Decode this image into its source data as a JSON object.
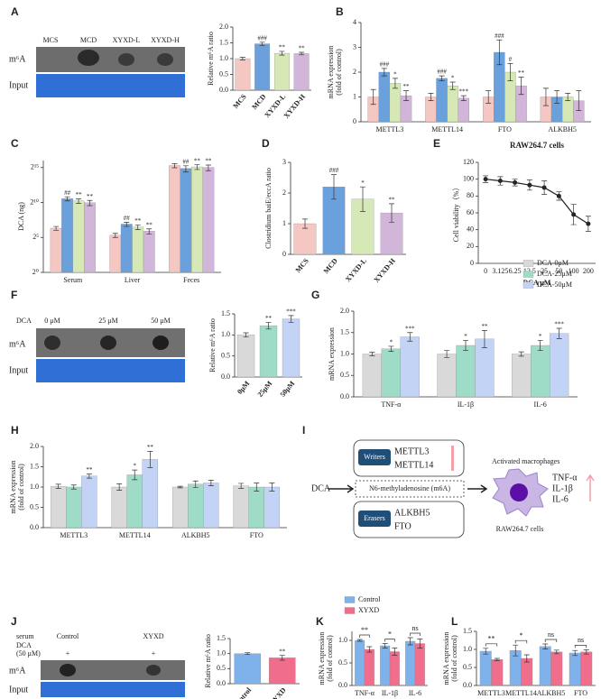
{
  "panel_letters": [
    "A",
    "B",
    "C",
    "D",
    "E",
    "F",
    "G",
    "H",
    "I",
    "J",
    "K",
    "L"
  ],
  "blots": [
    {
      "lanes": [
        "MCS",
        "MCD",
        "XYXD-L",
        "XYXD-H"
      ],
      "rows": [
        "m⁶A",
        "Input"
      ]
    },
    {
      "treatment": "DCA",
      "lanes": [
        "0 μM",
        "25 μM",
        "50 μM"
      ],
      "rows": [
        "m⁶A",
        "Input"
      ]
    },
    {
      "group_label": "serum",
      "lanes": [
        "Control",
        "XYXD"
      ],
      "treatment": "DCA",
      "dose": "(50 μM)",
      "doses": [
        "+",
        "+"
      ],
      "rows": [
        "m⁶A",
        "Input"
      ]
    }
  ],
  "diagram": {
    "writers_title": "Writers",
    "writers": [
      "METTL3",
      "METTL14"
    ],
    "input": "DCA",
    "modification": "N6-methyladenosine (m6A)",
    "erasers_title": "Erasers",
    "erasers": [
      "ALKBH5",
      "FTO"
    ],
    "output_title": "Activated macrophages",
    "cytokines": [
      "TNF-α",
      "IL-1β",
      "IL-6"
    ],
    "cell_label": "RAW264.7 cells"
  },
  "chart_data": [
    {
      "type": "bar",
      "ylabel": [
        "Relative m⁶A ratio"
      ],
      "categories": [
        "MCS",
        "MCD",
        "XYXD-L",
        "XYXD-H"
      ],
      "series": [
        {
          "colors": [
            "#f4c7c3",
            "#6aa1dc",
            "#d5e8b5",
            "#d2b6da"
          ],
          "values": [
            1.0,
            1.47,
            1.17,
            1.16
          ],
          "errors": [
            0.04,
            0.05,
            0.06,
            0.04
          ],
          "marks": [
            null,
            "###",
            "**",
            "**"
          ]
        }
      ],
      "ylim": [
        0,
        2
      ],
      "yticks": [
        {
          "value": 0,
          "label": "0.0"
        },
        {
          "value": 0.5,
          "label": "0.5"
        },
        {
          "value": 1,
          "label": "1.0"
        },
        {
          "value": 1.5,
          "label": "1.5"
        },
        {
          "value": 2,
          "label": "2.0"
        }
      ]
    },
    {
      "type": "bar",
      "ylabel": [
        "mRNA expression",
        "(fold of control)"
      ],
      "categories": [
        "METTL3",
        "METTL14",
        "FTO",
        "ALKBH5"
      ],
      "series": [
        {
          "color": "#f4c7c3",
          "values": [
            1.0,
            1.0,
            1.0,
            1.0
          ],
          "errors": [
            0.3,
            0.15,
            0.25,
            0.35
          ]
        },
        {
          "color": "#6aa1dc",
          "values": [
            2.0,
            1.75,
            2.8,
            1.0
          ],
          "errors": [
            0.15,
            0.1,
            0.5,
            0.25
          ],
          "marks": [
            "###",
            "###",
            "###",
            null
          ]
        },
        {
          "color": "#d5e8b5",
          "values": [
            1.55,
            1.45,
            2.0,
            1.0
          ],
          "errors": [
            0.2,
            0.15,
            0.35,
            0.15
          ],
          "marks": [
            "*",
            "*",
            "#",
            null
          ]
        },
        {
          "color": "#d2b6da",
          "values": [
            1.05,
            0.95,
            1.45,
            0.85
          ],
          "errors": [
            0.2,
            0.1,
            0.35,
            0.4
          ],
          "marks": [
            "**",
            "***",
            "**",
            null
          ]
        }
      ],
      "ylim": [
        0,
        4
      ],
      "yticks": [
        0,
        1,
        2,
        3,
        4
      ]
    },
    {
      "type": "bar",
      "log_base": 2,
      "ylabel": [
        "DCA (ng)"
      ],
      "categories": [
        "Serum",
        "Liver",
        "Feces"
      ],
      "series": [
        {
          "color": "#f4c7c3",
          "values": [
            80,
            40,
            40000
          ],
          "errors": [
            15,
            8,
            8000
          ]
        },
        {
          "color": "#6aa1dc",
          "values": [
            1500,
            120,
            30000
          ],
          "errors": [
            300,
            25,
            9000
          ],
          "marks": [
            "##",
            "##",
            "##"
          ]
        },
        {
          "color": "#d5e8b5",
          "values": [
            1200,
            90,
            35000
          ],
          "errors": [
            250,
            20,
            8000
          ],
          "marks": [
            "**",
            "**",
            "**"
          ]
        },
        {
          "color": "#d2b6da",
          "values": [
            1000,
            60,
            33000
          ],
          "errors": [
            250,
            15,
            9000
          ],
          "marks": [
            "**",
            "**",
            "**"
          ]
        }
      ],
      "ylim": [
        1,
        65536
      ],
      "yticks": [
        {
          "value": 1,
          "label": "2⁰"
        },
        {
          "value": 32,
          "label": "2⁵"
        },
        {
          "value": 1024,
          "label": "2¹⁰"
        },
        {
          "value": 32768,
          "label": "2¹⁵"
        }
      ]
    },
    {
      "type": "bar",
      "ylabel": [
        "Clostridium baiE/eccA ratio"
      ],
      "categories": [
        "MCS",
        "MCD",
        "XYXD-L",
        "XYXD-H"
      ],
      "series": [
        {
          "colors": [
            "#f4c7c3",
            "#6aa1dc",
            "#d5e8b5",
            "#d2b6da"
          ],
          "values": [
            1.0,
            2.2,
            1.8,
            1.35
          ],
          "errors": [
            0.15,
            0.4,
            0.4,
            0.3
          ],
          "marks": [
            null,
            "###",
            "*",
            "**"
          ]
        }
      ],
      "ylim": [
        0,
        3
      ],
      "yticks": [
        0,
        1,
        2,
        3
      ]
    },
    {
      "type": "line",
      "title": "RAW264.7 cells",
      "ylabel": [
        "Cell viability（%）"
      ],
      "xlabel": "DCA μM",
      "categories": [
        "0",
        "3.125",
        "6.25",
        "12.5",
        "25",
        "50",
        "100",
        "200"
      ],
      "series": [
        {
          "color": "#222222",
          "values": [
            100,
            98,
            96,
            93,
            90,
            80,
            58,
            47
          ],
          "errors": [
            4,
            5,
            4,
            6,
            8,
            5,
            12,
            9
          ]
        }
      ],
      "ylim": [
        0,
        120
      ],
      "yticks": [
        0,
        20,
        40,
        60,
        80,
        100,
        120
      ]
    },
    {
      "type": "bar",
      "ylabel": [
        "Relative m⁶A ratio"
      ],
      "categories": [
        "0μM",
        "25μM",
        "50μM"
      ],
      "series": [
        {
          "colors": [
            "#d9d9d9",
            "#9fdcc8",
            "#c3d3f5"
          ],
          "values": [
            1.0,
            1.22,
            1.38
          ],
          "errors": [
            0.05,
            0.08,
            0.08
          ],
          "marks": [
            null,
            "**",
            "***"
          ]
        }
      ],
      "ylim": [
        0,
        1.5
      ],
      "yticks": [
        {
          "value": 0,
          "label": "0.0"
        },
        {
          "value": 0.5,
          "label": "0.5"
        },
        {
          "value": 1,
          "label": "1.0"
        },
        {
          "value": 1.5,
          "label": "1.5"
        }
      ]
    },
    {
      "type": "bar",
      "ylabel": [
        "mRNA expression"
      ],
      "categories": [
        "TNF-α",
        "IL-1β",
        "IL-6"
      ],
      "series": [
        {
          "name": "DCA-0μM",
          "color": "#d9d9d9",
          "values": [
            1.0,
            1.0,
            1.0
          ],
          "errors": [
            0.04,
            0.08,
            0.05
          ]
        },
        {
          "name": "DCA-25μM",
          "color": "#9fdcc8",
          "values": [
            1.12,
            1.2,
            1.2
          ],
          "errors": [
            0.06,
            0.12,
            0.12
          ],
          "marks": [
            "*",
            "*",
            "*"
          ]
        },
        {
          "name": "DCA-50μM",
          "color": "#c3d3f5",
          "values": [
            1.4,
            1.35,
            1.48
          ],
          "errors": [
            0.1,
            0.2,
            0.12
          ],
          "marks": [
            "***",
            "**",
            "***"
          ]
        }
      ],
      "ylim": [
        0,
        2
      ],
      "yticks": [
        {
          "value": 0,
          "label": "0.0"
        },
        {
          "value": 0.5,
          "label": "0.5"
        },
        {
          "value": 1,
          "label": "1.0"
        },
        {
          "value": 1.5,
          "label": "1.5"
        },
        {
          "value": 2,
          "label": "2.0"
        }
      ]
    },
    {
      "type": "bar",
      "ylabel": [
        "mRNA expression",
        "(fold of control)"
      ],
      "categories": [
        "METTL3",
        "METTL14",
        "ALKBH5",
        "FTO"
      ],
      "series": [
        {
          "color": "#d9d9d9",
          "values": [
            1.02,
            1.0,
            1.0,
            1.03
          ],
          "errors": [
            0.05,
            0.08,
            0.02,
            0.06
          ]
        },
        {
          "color": "#9fdcc8",
          "values": [
            1.0,
            1.3,
            1.07,
            1.0
          ],
          "errors": [
            0.05,
            0.12,
            0.08,
            0.1
          ],
          "marks": [
            null,
            "*",
            null,
            null
          ]
        },
        {
          "color": "#c3d3f5",
          "values": [
            1.27,
            1.68,
            1.1,
            1.0
          ],
          "errors": [
            0.05,
            0.2,
            0.07,
            0.1
          ],
          "marks": [
            "**",
            "**",
            null,
            null
          ]
        }
      ],
      "ylim": [
        0,
        2
      ],
      "yticks": [
        {
          "value": 0,
          "label": "0.0"
        },
        {
          "value": 0.5,
          "label": "0.5"
        },
        {
          "value": 1,
          "label": "1.0"
        },
        {
          "value": 1.5,
          "label": "1.5"
        },
        {
          "value": 2,
          "label": "2.0"
        }
      ]
    },
    {
      "type": "bar",
      "ylabel": [
        "Relative m⁶A ratio"
      ],
      "categories": [
        "Control",
        "XYXD"
      ],
      "series": [
        {
          "colors": [
            "#7fb2ea",
            "#f06d8c"
          ],
          "values": [
            1.0,
            0.86
          ],
          "errors": [
            0.03,
            0.08
          ],
          "marks": [
            null,
            "**"
          ]
        }
      ],
      "ylim": [
        0,
        1.5
      ],
      "yticks": [
        {
          "value": 0,
          "label": "0.0"
        },
        {
          "value": 0.5,
          "label": "0.5"
        },
        {
          "value": 1,
          "label": "1.0"
        },
        {
          "value": 1.5,
          "label": "1.5"
        }
      ]
    },
    {
      "type": "bar",
      "ylabel": [
        "mRNA expression",
        "(fold of control)"
      ],
      "categories": [
        "TNF-α",
        "IL-1β",
        "IL-6"
      ],
      "series": [
        {
          "name": "Control",
          "color": "#7fb2ea",
          "values": [
            1.0,
            0.88,
            0.98
          ],
          "errors": [
            0.02,
            0.05,
            0.08
          ]
        },
        {
          "name": "XYXD",
          "color": "#f06d8c",
          "values": [
            0.8,
            0.75,
            0.93
          ],
          "errors": [
            0.06,
            0.08,
            0.1
          ]
        }
      ],
      "comparisons": [
        "**",
        "*",
        "ns"
      ],
      "ylim": [
        0,
        1.2
      ],
      "yticks": [
        {
          "value": 0,
          "label": "0.0"
        },
        {
          "value": 0.5,
          "label": "0.5"
        },
        {
          "value": 1,
          "label": "1.0"
        }
      ]
    },
    {
      "type": "bar",
      "ylabel": [
        "mRNA expression",
        "(fold of control)"
      ],
      "categories": [
        "METTL3",
        "METTL14",
        "ALKBH5",
        "FTO"
      ],
      "series": [
        {
          "color": "#7fb2ea",
          "values": [
            0.95,
            0.97,
            1.08,
            0.9
          ],
          "errors": [
            0.08,
            0.15,
            0.07,
            0.07
          ]
        },
        {
          "color": "#f06d8c",
          "values": [
            0.72,
            0.75,
            0.93,
            0.93
          ],
          "errors": [
            0.03,
            0.1,
            0.05,
            0.06
          ]
        }
      ],
      "comparisons": [
        "**",
        "*",
        "ns",
        "ns"
      ],
      "ylim": [
        0,
        1.5
      ],
      "yticks": [
        {
          "value": 0,
          "label": "0.0"
        },
        {
          "value": 0.5,
          "label": "0.5"
        },
        {
          "value": 1,
          "label": "1.0"
        },
        {
          "value": 1.5,
          "label": "1.5"
        }
      ]
    }
  ]
}
